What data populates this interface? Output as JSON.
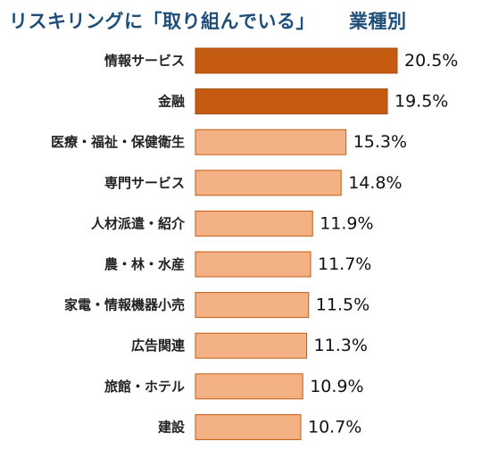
{
  "title": {
    "main": "リスキリングに「取り組んでいる」",
    "sub": "業種別"
  },
  "colors": {
    "title": "#1f4e79",
    "highlight_fill": "#c55a11",
    "highlight_stroke": "#a34a0d",
    "normal_fill": "#f4b183",
    "normal_stroke": "#c55a11"
  },
  "chart_data": {
    "type": "bar",
    "orientation": "horizontal",
    "categories": [
      "情報サービス",
      "金融",
      "医療・福祉・保健衛生",
      "専門サービス",
      "人材派遣・紹介",
      "農・林・水産",
      "家電・情報機器小売",
      "広告関連",
      "旅館・ホテル",
      "建設"
    ],
    "values": [
      20.5,
      19.5,
      15.3,
      14.8,
      11.9,
      11.7,
      11.5,
      11.3,
      10.9,
      10.7
    ],
    "value_labels": [
      "20.5%",
      "19.5%",
      "15.3%",
      "14.8%",
      "11.9%",
      "11.7%",
      "11.5%",
      "11.3%",
      "10.9%",
      "10.7%"
    ],
    "highlighted": [
      true,
      true,
      false,
      false,
      false,
      false,
      false,
      false,
      false,
      false
    ],
    "xlim": [
      0,
      20.5
    ],
    "grid": false,
    "legend": false
  }
}
